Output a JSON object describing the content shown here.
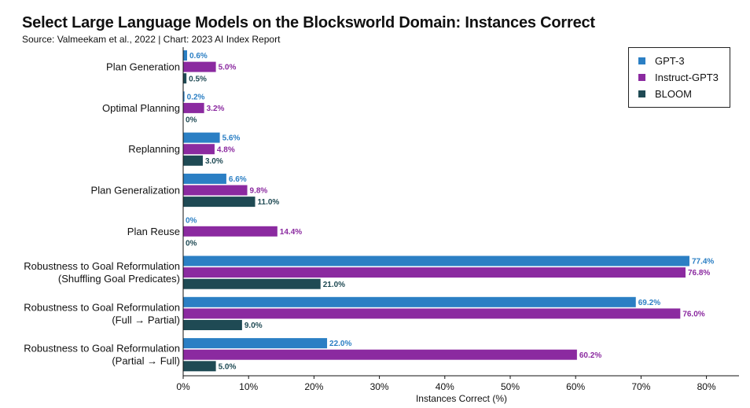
{
  "title": "Select Large Language Models on the Blocksworld Domain: Instances Correct",
  "subtitle": "Source: Valmeekam et al., 2022 | Chart: 2023 AI Index Report",
  "colors": {
    "GPT-3": "#2b7fc4",
    "Instruct-GPT3": "#8b2aa0",
    "BLOOM": "#1f4a54"
  },
  "chart_data": {
    "type": "bar",
    "orientation": "horizontal",
    "title": "Select Large Language Models on the Blocksworld Domain: Instances Correct",
    "xlabel": "Instances Correct (%)",
    "ylabel": "",
    "xlim": [
      0,
      85
    ],
    "xticks": [
      "0%",
      "10%",
      "20%",
      "30%",
      "40%",
      "50%",
      "60%",
      "70%",
      "80%"
    ],
    "grid": false,
    "legend_position": "top-right",
    "categories": [
      [
        "Plan Generation"
      ],
      [
        "Optimal Planning"
      ],
      [
        "Replanning"
      ],
      [
        "Plan Generalization"
      ],
      [
        "Plan Reuse"
      ],
      [
        "Robustness to Goal Reformulation",
        "(Shuffling Goal Predicates)"
      ],
      [
        "Robustness to Goal Reformulation",
        "(Full → Partial)"
      ],
      [
        "Robustness to Goal Reformulation",
        "(Partial → Full)"
      ]
    ],
    "series": [
      {
        "name": "GPT-3",
        "values": [
          0.6,
          0.2,
          5.6,
          6.6,
          0,
          77.4,
          69.2,
          22.0
        ],
        "labels": [
          "0.6%",
          "0.2%",
          "5.6%",
          "6.6%",
          "0%",
          "77.4%",
          "69.2%",
          "22.0%"
        ]
      },
      {
        "name": "Instruct-GPT3",
        "values": [
          5.0,
          3.2,
          4.8,
          9.8,
          14.4,
          76.8,
          76.0,
          60.2
        ],
        "labels": [
          "5.0%",
          "3.2%",
          "4.8%",
          "9.8%",
          "14.4%",
          "76.8%",
          "76.0%",
          "60.2%"
        ]
      },
      {
        "name": "BLOOM",
        "values": [
          0.5,
          0,
          3.0,
          11.0,
          0,
          21.0,
          9.0,
          5.0
        ],
        "labels": [
          "0.5%",
          "0%",
          "3.0%",
          "11.0%",
          "0%",
          "21.0%",
          "9.0%",
          "5.0%"
        ]
      }
    ]
  }
}
